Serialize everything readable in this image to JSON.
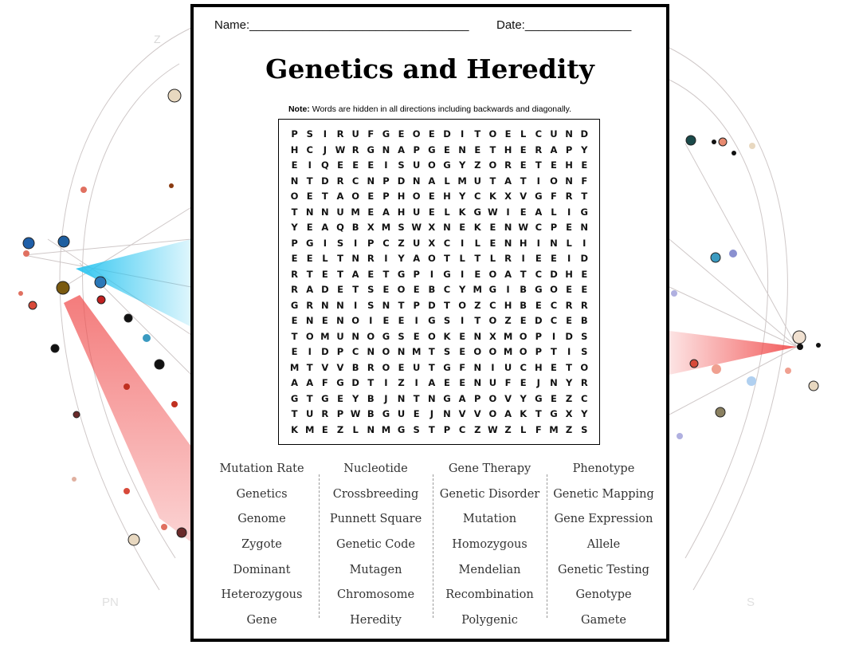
{
  "header": {
    "name_label": "Name:_________________________________",
    "date_label": "Date:________________"
  },
  "title": "Genetics and Heredity",
  "note": {
    "label": "Note:",
    "text": " Words are hidden in all directions including backwards and diagonally."
  },
  "backdrop_labels": {
    "top_left": "Z",
    "bottom_left": "PN",
    "bottom_right": "S"
  },
  "grid": [
    "PSIRUFGEOEDITOELCUND",
    "HCJWRGNAPGENETHERAPY",
    "EIQEEEISUOGYZORETEHE",
    "NTDRCNPDNALMUTATIONF",
    "OETAOEPHOEHYCKXVGFRT",
    "TNNUMEAHUELKGWIEALIG",
    "YEAQBXMSWXNEKENWCPEN",
    "PGISIPCZUXCILENHINLI",
    "EELTNRIYAOTLTLRIEEID",
    "RTETAETGPIGIEOATCDHE",
    "RADETSEOEBCYMGIBGOEE",
    "GRNNISNTPDTOZCHBECRR",
    "ENENOIEEIGSITOZEDCEB",
    "TOMUNOGSEOKENXMOPIDS",
    "EIDPCNONMTSEOOMOPTIS",
    "MTVVBROEUTGFNIUCHETO",
    "AAFGDTIZIAEENUFEJNYR",
    "GTGEYBJNTNGAPOVYGEZC",
    "TURPWBGUEJNVVOAKTGXY",
    "KMEZLNMGSTPCZWZLFMZS"
  ],
  "word_columns": [
    [
      "Mutation Rate",
      "Genetics",
      "Genome",
      "Zygote",
      "Dominant",
      "Heterozygous",
      "Gene"
    ],
    [
      "Nucleotide",
      "Crossbreeding",
      "Punnett Square",
      "Genetic Code",
      "Mutagen",
      "Chromosome",
      "Heredity"
    ],
    [
      "Gene Therapy",
      "Genetic Disorder",
      "Mutation",
      "Homozygous",
      "Mendelian",
      "Recombination",
      "Polygenic"
    ],
    [
      "Phenotype",
      "Genetic Mapping",
      "Gene Expression",
      "Allele",
      "Genetic Testing",
      "Genotype",
      "Gamete"
    ]
  ],
  "colors": {
    "cyan_fan": "#29c4f0",
    "red_fan": "#f05050",
    "arc": "#c9c3c3"
  }
}
